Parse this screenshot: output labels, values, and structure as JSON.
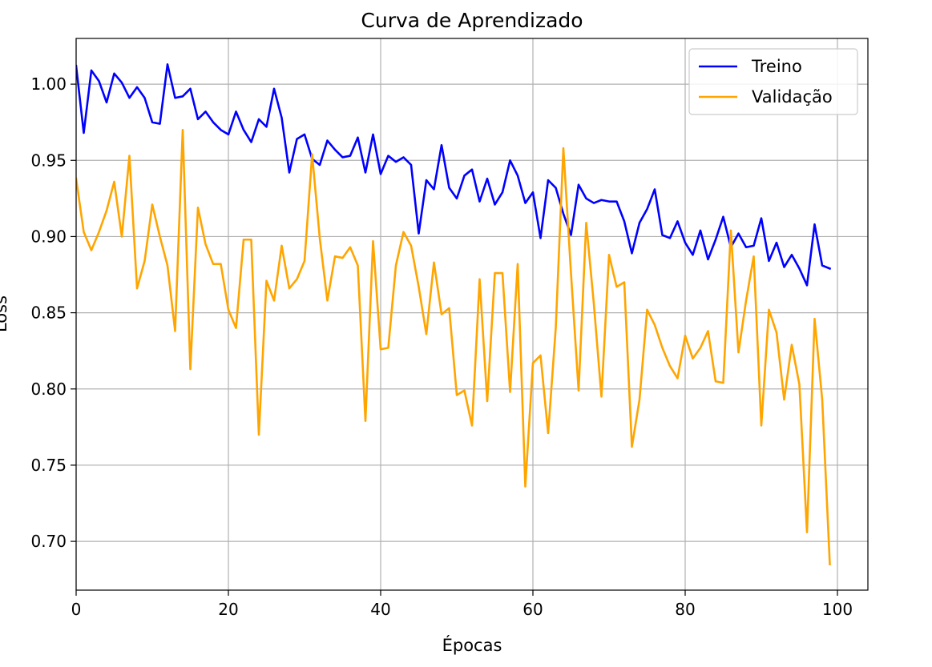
{
  "chart_data": {
    "type": "line",
    "title": "Curva de Aprendizado",
    "xlabel": "Épocas",
    "ylabel": "Loss",
    "xlim": [
      0,
      104
    ],
    "ylim": [
      0.668,
      1.03
    ],
    "xticks": [
      0,
      20,
      40,
      60,
      80,
      100
    ],
    "xtick_labels": [
      "0",
      "20",
      "40",
      "60",
      "80",
      "100"
    ],
    "yticks": [
      0.7,
      0.75,
      0.8,
      0.85,
      0.9,
      0.95,
      1.0
    ],
    "ytick_labels": [
      "0.70",
      "0.75",
      "0.80",
      "0.85",
      "0.90",
      "0.95",
      "1.00"
    ],
    "grid": true,
    "legend_position": "upper-right",
    "series": [
      {
        "name": "Treino",
        "color": "#0000ff",
        "x": [
          0,
          1,
          2,
          3,
          4,
          5,
          6,
          7,
          8,
          9,
          10,
          11,
          12,
          13,
          14,
          15,
          16,
          17,
          18,
          19,
          20,
          21,
          22,
          23,
          24,
          25,
          26,
          27,
          28,
          29,
          30,
          31,
          32,
          33,
          34,
          35,
          36,
          37,
          38,
          39,
          40,
          41,
          42,
          43,
          44,
          45,
          46,
          47,
          48,
          49,
          50,
          51,
          52,
          53,
          54,
          55,
          56,
          57,
          58,
          59,
          60,
          61,
          62,
          63,
          64,
          65,
          66,
          67,
          68,
          69,
          70,
          71,
          72,
          73,
          74,
          75,
          76,
          77,
          78,
          79,
          80,
          81,
          82,
          83,
          84,
          85,
          86,
          87,
          88,
          89,
          90,
          91,
          92,
          93,
          94,
          95,
          96,
          97,
          98,
          99
        ],
        "values": [
          1.012,
          0.968,
          1.009,
          1.002,
          0.988,
          1.007,
          1.001,
          0.991,
          0.998,
          0.991,
          0.975,
          0.974,
          1.013,
          0.991,
          0.992,
          0.997,
          0.977,
          0.982,
          0.975,
          0.97,
          0.967,
          0.982,
          0.97,
          0.962,
          0.977,
          0.972,
          0.997,
          0.978,
          0.942,
          0.964,
          0.967,
          0.951,
          0.947,
          0.963,
          0.957,
          0.952,
          0.953,
          0.965,
          0.942,
          0.967,
          0.941,
          0.953,
          0.949,
          0.952,
          0.947,
          0.902,
          0.937,
          0.931,
          0.96,
          0.932,
          0.925,
          0.94,
          0.944,
          0.923,
          0.938,
          0.921,
          0.929,
          0.95,
          0.94,
          0.922,
          0.929,
          0.899,
          0.937,
          0.932,
          0.915,
          0.901,
          0.934,
          0.925,
          0.922,
          0.924,
          0.923,
          0.923,
          0.91,
          0.889,
          0.909,
          0.918,
          0.931,
          0.901,
          0.899,
          0.91,
          0.896,
          0.888,
          0.904,
          0.885,
          0.898,
          0.913,
          0.893,
          0.902,
          0.893,
          0.894,
          0.912,
          0.884,
          0.896,
          0.88,
          0.888,
          0.879,
          0.868,
          0.908,
          0.881,
          0.879
        ]
      },
      {
        "name": "Validação",
        "color": "#ffa500",
        "x": [
          0,
          1,
          2,
          3,
          4,
          5,
          6,
          7,
          8,
          9,
          10,
          11,
          12,
          13,
          14,
          15,
          16,
          17,
          18,
          19,
          20,
          21,
          22,
          23,
          24,
          25,
          26,
          27,
          28,
          29,
          30,
          31,
          32,
          33,
          34,
          35,
          36,
          37,
          38,
          39,
          40,
          41,
          42,
          43,
          44,
          45,
          46,
          47,
          48,
          49,
          50,
          51,
          52,
          53,
          54,
          55,
          56,
          57,
          58,
          59,
          60,
          61,
          62,
          63,
          64,
          65,
          66,
          67,
          68,
          69,
          70,
          71,
          72,
          73,
          74,
          75,
          76,
          77,
          78,
          79,
          80,
          81,
          82,
          83,
          84,
          85,
          86,
          87,
          88,
          89,
          90,
          91,
          92,
          93,
          94,
          95,
          96,
          97,
          98,
          99
        ],
        "values": [
          0.938,
          0.903,
          0.891,
          0.903,
          0.917,
          0.936,
          0.9,
          0.953,
          0.866,
          0.884,
          0.921,
          0.9,
          0.881,
          0.838,
          0.97,
          0.813,
          0.919,
          0.895,
          0.882,
          0.882,
          0.852,
          0.84,
          0.898,
          0.898,
          0.77,
          0.871,
          0.858,
          0.894,
          0.866,
          0.872,
          0.884,
          0.954,
          0.899,
          0.858,
          0.887,
          0.886,
          0.893,
          0.881,
          0.779,
          0.897,
          0.826,
          0.827,
          0.881,
          0.903,
          0.894,
          0.867,
          0.836,
          0.883,
          0.849,
          0.853,
          0.796,
          0.799,
          0.776,
          0.872,
          0.792,
          0.876,
          0.876,
          0.798,
          0.882,
          0.736,
          0.817,
          0.822,
          0.771,
          0.84,
          0.958,
          0.876,
          0.799,
          0.909,
          0.856,
          0.795,
          0.888,
          0.867,
          0.87,
          0.762,
          0.793,
          0.852,
          0.842,
          0.827,
          0.815,
          0.807,
          0.835,
          0.82,
          0.827,
          0.838,
          0.805,
          0.804,
          0.904,
          0.824,
          0.858,
          0.887,
          0.776,
          0.852,
          0.837,
          0.793,
          0.829,
          0.803,
          0.706,
          0.846,
          0.793,
          0.685
        ]
      }
    ]
  }
}
